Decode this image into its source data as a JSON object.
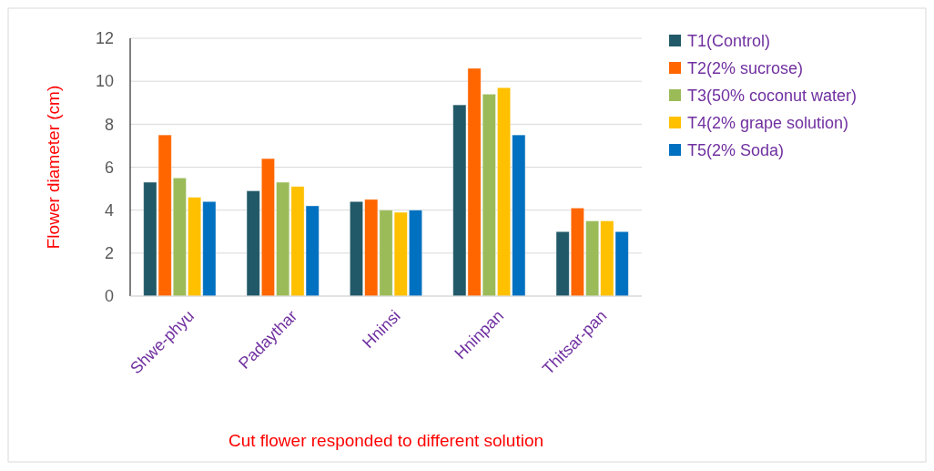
{
  "chart_data": {
    "type": "bar",
    "xlabel": "Cut flower responded to different solution",
    "ylabel": "Flower diameter (cm)",
    "categories": [
      "Shwe-phyu",
      "Padaythar",
      "Hninsi",
      "Hninpan",
      "Thitsar-pan"
    ],
    "series": [
      {
        "name": "T1(Control)",
        "color": "#215968",
        "values": [
          5.3,
          4.9,
          4.4,
          8.9,
          3.0
        ]
      },
      {
        "name": "T2(2% sucrose)",
        "color": "#ff6600",
        "values": [
          7.5,
          6.4,
          4.5,
          10.6,
          4.1
        ]
      },
      {
        "name": "T3(50% coconut water)",
        "color": "#9bbb59",
        "values": [
          5.5,
          5.3,
          4.0,
          9.4,
          3.5
        ]
      },
      {
        "name": "T4(2% grape solution)",
        "color": "#ffc000",
        "values": [
          4.6,
          5.1,
          3.9,
          9.7,
          3.5
        ]
      },
      {
        "name": "T5(2% Soda)",
        "color": "#0070c0",
        "values": [
          4.4,
          4.2,
          4.0,
          7.5,
          3.0
        ]
      }
    ],
    "ylim": [
      0,
      12
    ],
    "yticks": [
      0,
      2,
      4,
      6,
      8,
      10,
      12
    ],
    "grid": "y",
    "legend": "top right"
  }
}
